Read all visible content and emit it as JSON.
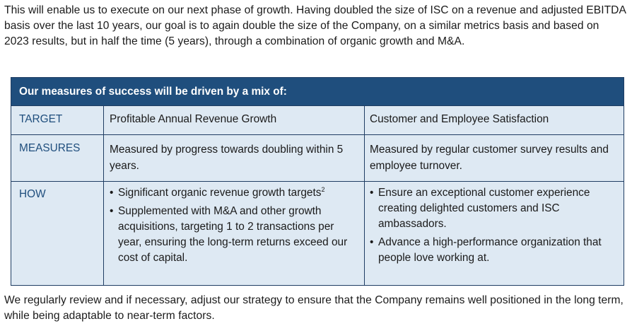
{
  "intro_text": "This will enable us to execute on our next phase of growth. Having doubled the size of ISC on a revenue and adjusted EBITDA basis over the last 10 years, our goal is to again double the size of the Company, on a similar metrics basis and based on 2023 results, but in half the time (5 years), through a combination of organic growth and M&A.",
  "table": {
    "header": "Our measures of success will be driven by a mix of:",
    "rows": [
      {
        "label": "TARGET",
        "col1": "Profitable Annual Revenue Growth",
        "col2": "Customer and Employee Satisfaction"
      },
      {
        "label": "MEASURES",
        "col1": "Measured by progress towards doubling within 5 years.",
        "col2": "Measured by regular customer survey results and employee turnover."
      },
      {
        "label": "HOW",
        "col1_bullets": [
          {
            "text": "Significant organic revenue growth targets",
            "footnote": "2"
          },
          {
            "text": "Supplemented with M&A and other growth acquisitions, targeting 1 to 2 transactions per year, ensuring the long-term returns exceed our cost of capital."
          }
        ],
        "col2_bullets": [
          {
            "text": "Ensure an exceptional customer experience creating delighted customers and ISC ambassadors."
          },
          {
            "text": "Advance a high-performance organization that people love working at."
          }
        ]
      }
    ],
    "bullet_glyph": "•"
  },
  "outro_text": "We regularly review and if necessary, adjust our strategy to ensure that the Company remains well positioned in the long term, while being adaptable to near-term factors.",
  "colors": {
    "header_bg": "#1f4e7d",
    "table_bg": "#dee9f3",
    "label_text": "#1f4e7d",
    "border": "#1f3d63"
  }
}
